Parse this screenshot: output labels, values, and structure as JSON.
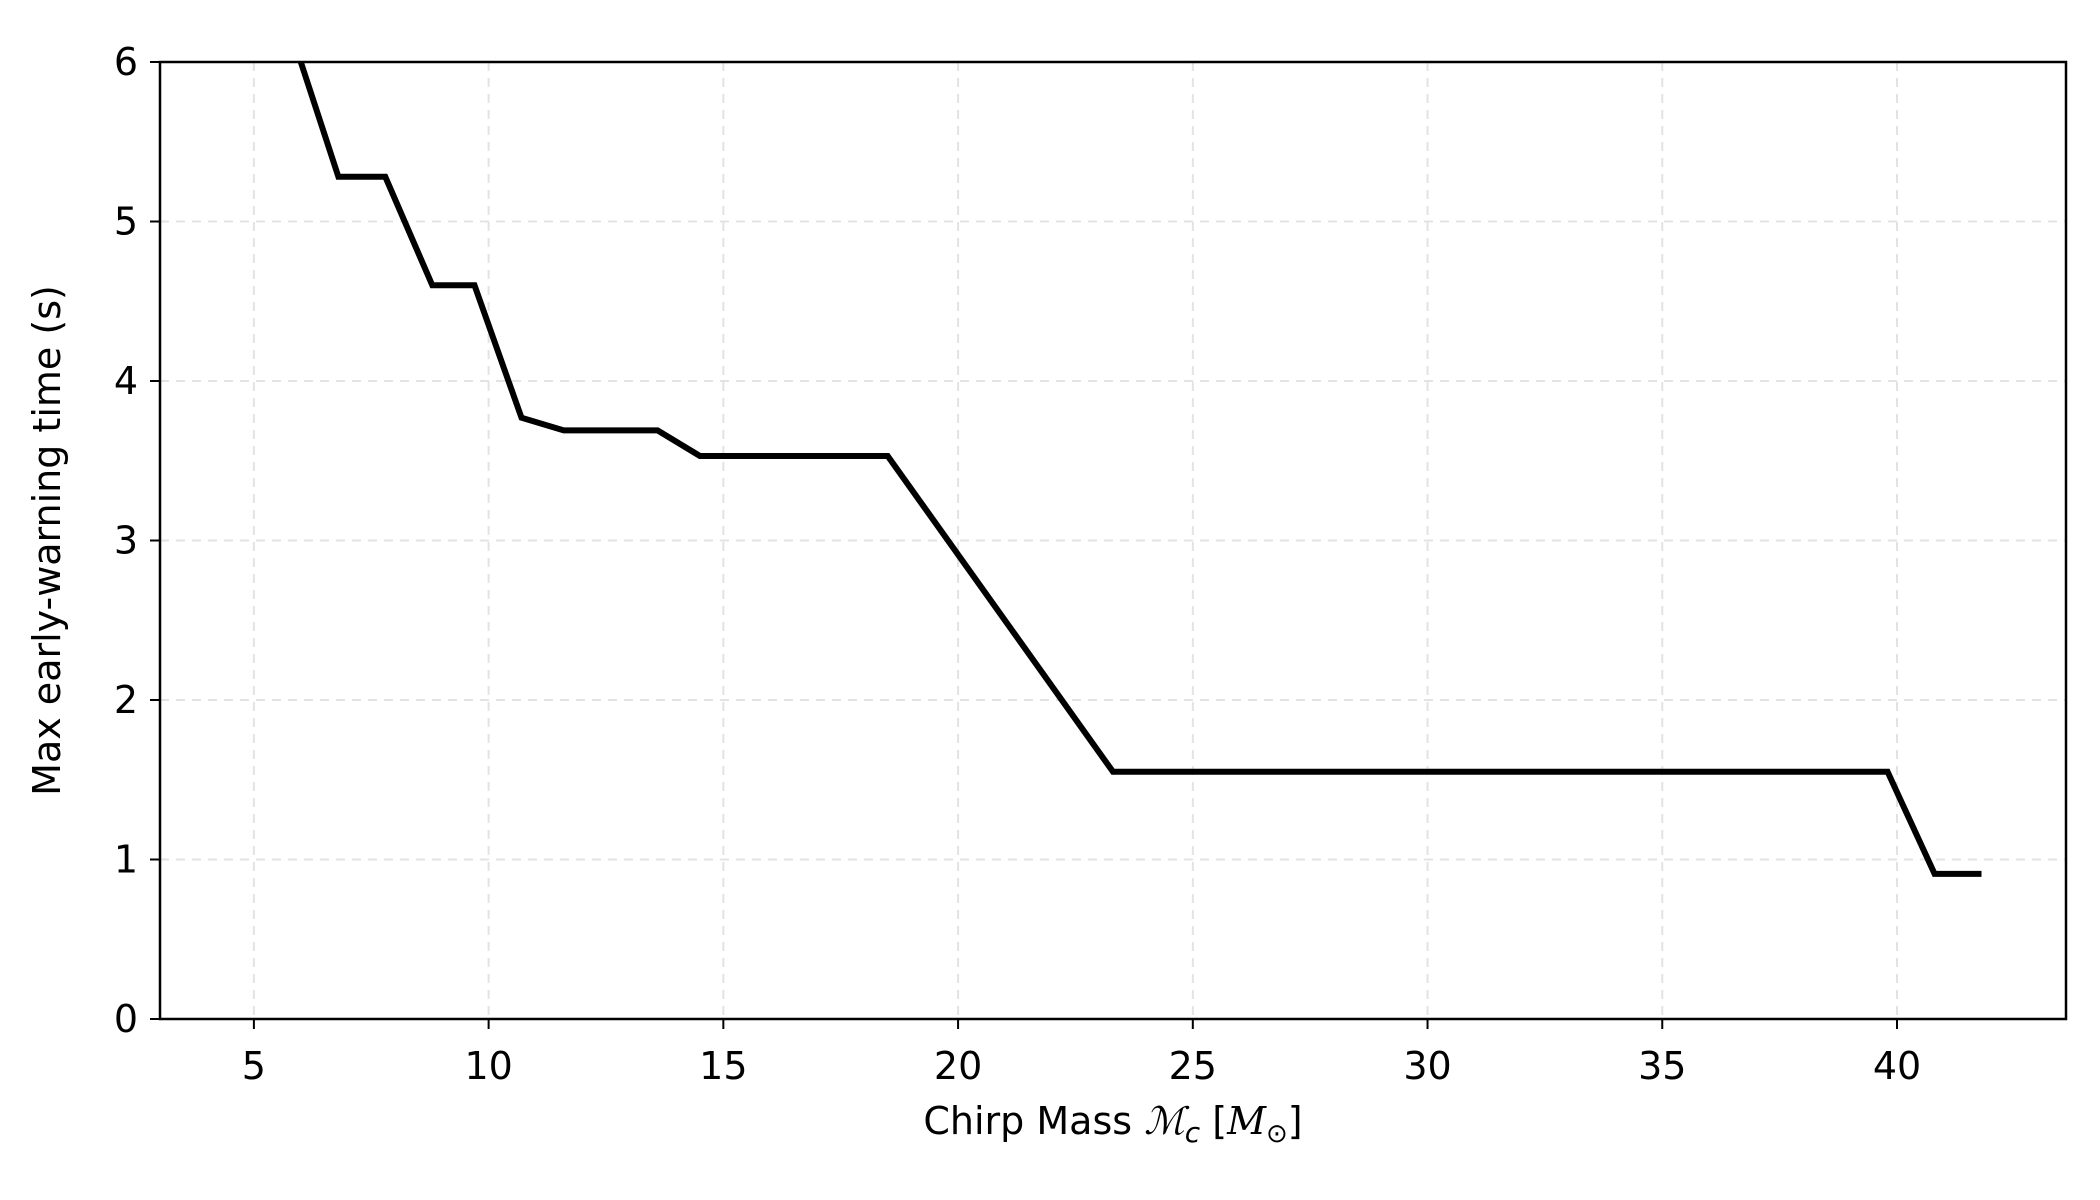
{
  "chart_data": {
    "type": "line",
    "title": "",
    "xlabel_prefix": "Chirp Mass ",
    "xlabel_symbol": "ℳ",
    "xlabel_sub": "c",
    "xlabel_mid": " [",
    "xlabel_unit": "M",
    "xlabel_unit_sub": "⊙",
    "xlabel_close": "]",
    "ylabel": "Max early-warning time (s)",
    "xlim": [
      3,
      43.6
    ],
    "ylim": [
      0,
      6
    ],
    "xticks": [
      5,
      10,
      15,
      20,
      25,
      30,
      35,
      40
    ],
    "yticks": [
      0,
      1,
      2,
      3,
      4,
      5,
      6
    ],
    "grid": true,
    "series": [
      {
        "color": "#000000",
        "x": [
          6.0,
          6.8,
          7.8,
          8.8,
          9.7,
          10.7,
          11.6,
          12.6,
          13.6,
          14.5,
          15.5,
          16.5,
          17.5,
          18.5,
          23.3,
          39.8,
          40.8,
          41.8
        ],
        "y": [
          6.0,
          5.28,
          5.28,
          4.6,
          4.6,
          3.77,
          3.69,
          3.69,
          3.69,
          3.53,
          3.53,
          3.53,
          3.53,
          3.53,
          1.55,
          1.55,
          0.91,
          0.91
        ]
      }
    ]
  }
}
